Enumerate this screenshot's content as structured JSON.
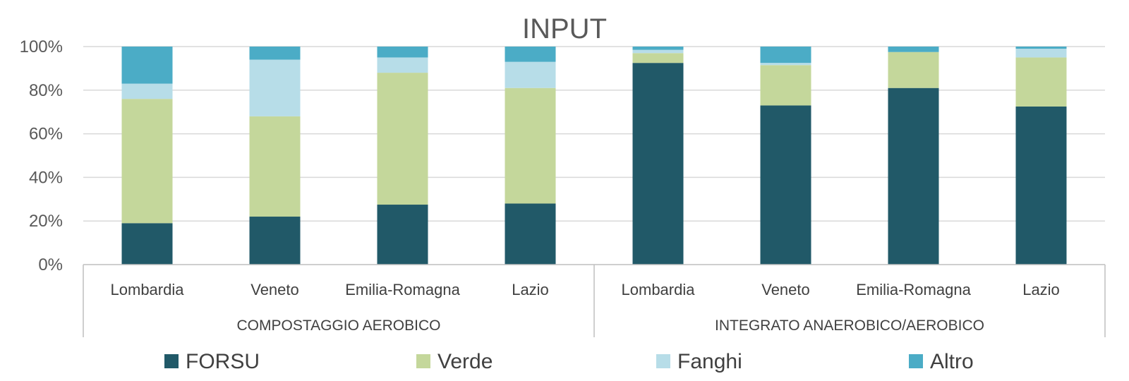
{
  "chart_data": {
    "type": "bar",
    "stacked": true,
    "normalized": true,
    "title": "INPUT",
    "ylim": [
      0,
      100
    ],
    "yticks": [
      "0%",
      "20%",
      "40%",
      "60%",
      "80%",
      "100%"
    ],
    "groups": [
      {
        "label": "COMPOSTAGGIO AEROBICO",
        "categories": [
          "Lombardia",
          "Veneto",
          "Emilia-Romagna",
          "Lazio"
        ]
      },
      {
        "label": "INTEGRATO ANAEROBICO/AEROBICO",
        "categories": [
          "Lombardia",
          "Veneto",
          "Emilia-Romagna",
          "Lazio"
        ]
      }
    ],
    "categories": [
      "Lombardia",
      "Veneto",
      "Emilia-Romagna",
      "Lazio",
      "Lombardia",
      "Veneto",
      "Emilia-Romagna",
      "Lazio"
    ],
    "series": [
      {
        "name": "FORSU",
        "color": "#215968",
        "values": [
          19,
          22,
          27.5,
          28,
          92.5,
          73,
          81,
          72.5
        ]
      },
      {
        "name": "Verde",
        "color": "#c4d79b",
        "values": [
          57,
          46,
          60.5,
          53,
          4.5,
          18.5,
          16.5,
          22.5
        ]
      },
      {
        "name": "Fanghi",
        "color": "#b7dde8",
        "values": [
          7,
          26,
          7,
          12,
          1.5,
          1,
          0,
          4
        ]
      },
      {
        "name": "Altro",
        "color": "#4bacc6",
        "values": [
          17,
          6,
          5,
          7,
          1.5,
          7.5,
          2.5,
          1
        ]
      }
    ],
    "grid": true,
    "legend_position": "bottom"
  }
}
